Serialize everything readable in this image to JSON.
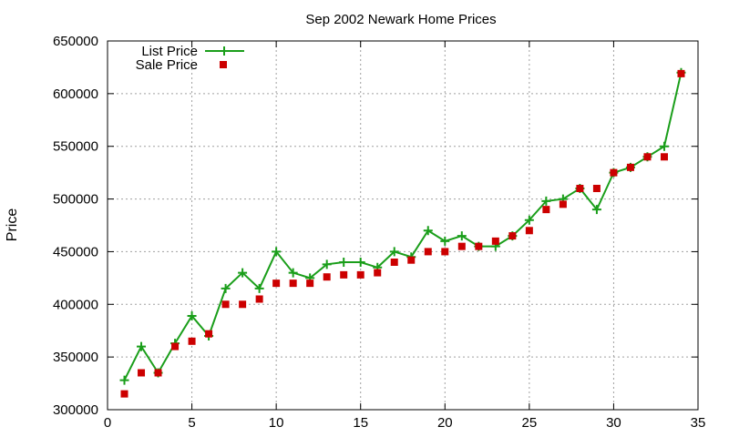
{
  "chart_data": {
    "type": "line",
    "title": "Sep 2002 Newark Home Prices",
    "xlabel": "",
    "ylabel": "Price",
    "xlim": [
      0,
      35
    ],
    "ylim": [
      300000,
      650000
    ],
    "xticks": [
      0,
      5,
      10,
      15,
      20,
      25,
      30,
      35
    ],
    "yticks": [
      300000,
      350000,
      400000,
      450000,
      500000,
      550000,
      600000,
      650000
    ],
    "grid": true,
    "legend_position": "top-left",
    "x": [
      1,
      2,
      3,
      4,
      5,
      6,
      7,
      8,
      9,
      10,
      11,
      12,
      13,
      14,
      15,
      16,
      17,
      18,
      19,
      20,
      21,
      22,
      23,
      24,
      25,
      26,
      27,
      28,
      29,
      30,
      31,
      32,
      33,
      34
    ],
    "series": [
      {
        "name": "List Price",
        "style": "line-points",
        "color": "#1a9e1a",
        "values": [
          328000,
          360000,
          335000,
          363000,
          389000,
          370000,
          415000,
          430000,
          415000,
          450000,
          430000,
          425000,
          438000,
          440000,
          440000,
          435000,
          450000,
          445000,
          470000,
          460000,
          465000,
          455000,
          455000,
          465000,
          480000,
          498000,
          500000,
          510000,
          490000,
          525000,
          530000,
          540000,
          550000,
          620000
        ]
      },
      {
        "name": "Sale Price",
        "style": "points",
        "color": "#cc0000",
        "values": [
          315000,
          335000,
          335000,
          360000,
          365000,
          372000,
          400000,
          400000,
          405000,
          420000,
          420000,
          420000,
          426000,
          428000,
          428000,
          430000,
          440000,
          442000,
          450000,
          450000,
          455000,
          455000,
          460000,
          465000,
          470000,
          490000,
          495000,
          510000,
          510000,
          525000,
          530000,
          540000,
          540000,
          619000
        ]
      }
    ]
  }
}
